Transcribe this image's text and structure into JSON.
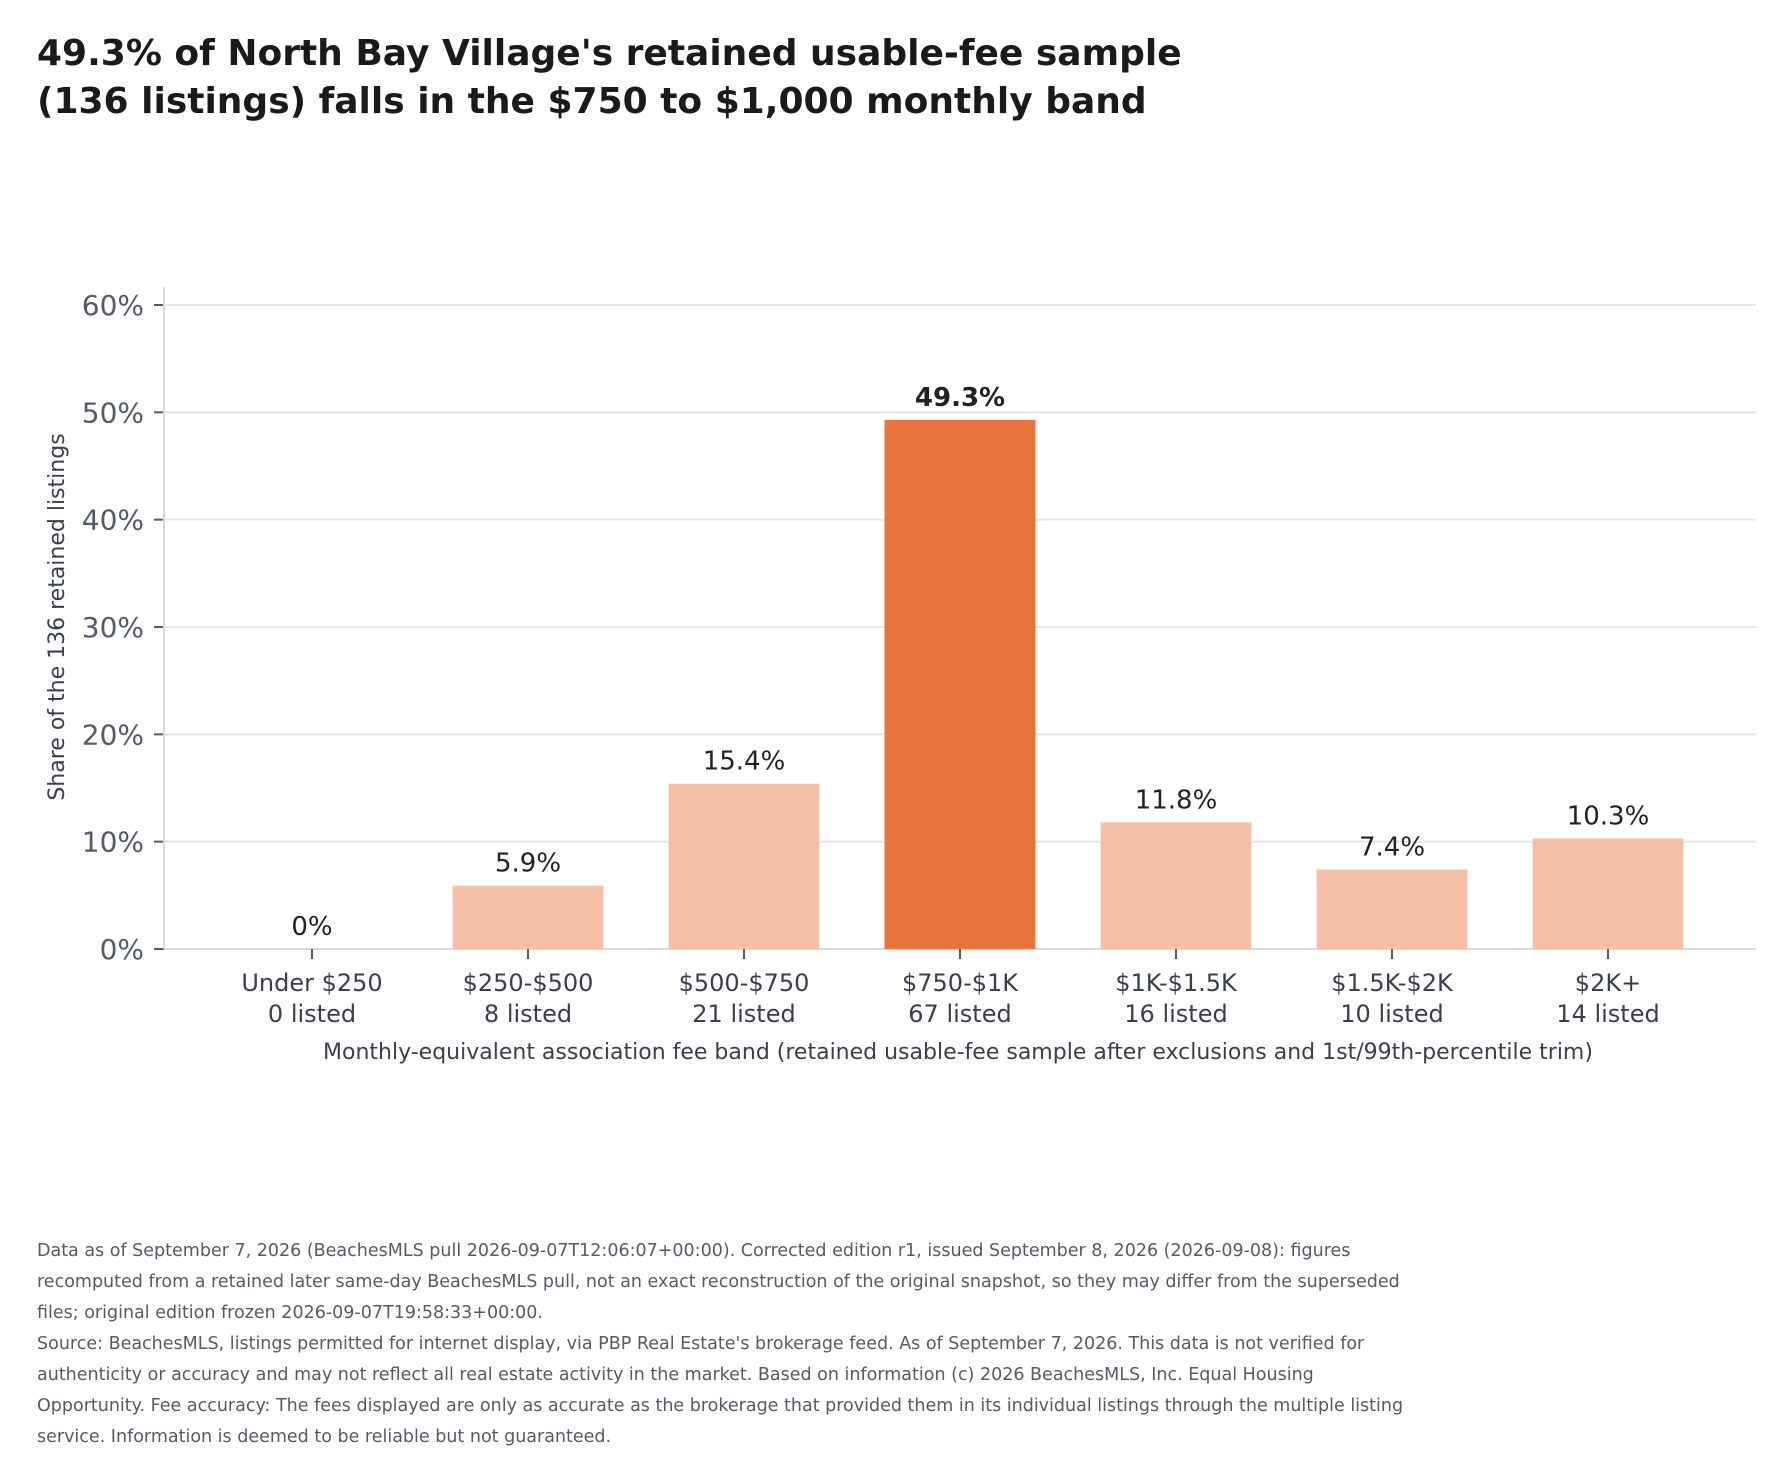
{
  "title": "49.3% of North Bay Village's retained usable-fee sample (136 listings) falls in the $750 to $1,000 monthly band",
  "chart_data": {
    "type": "bar",
    "categories": [
      "Under $250",
      "$250-$500",
      "$500-$750",
      "$750-$1K",
      "$1K-$1.5K",
      "$1.5K-$2K",
      "$2K+"
    ],
    "counts": [
      "0 listed",
      "8 listed",
      "21 listed",
      "67 listed",
      "16 listed",
      "10 listed",
      "14 listed"
    ],
    "values": [
      0,
      5.9,
      15.4,
      49.3,
      11.8,
      7.4,
      10.3
    ],
    "data_labels": [
      "0%",
      "5.9%",
      "15.4%",
      "49.3%",
      "11.8%",
      "7.4%",
      "10.3%"
    ],
    "highlight_index": 3,
    "ylim": [
      0,
      60
    ],
    "yticks": [
      0,
      10,
      20,
      30,
      40,
      50,
      60
    ],
    "ytick_labels": [
      "0%",
      "10%",
      "20%",
      "30%",
      "40%",
      "50%",
      "60%"
    ],
    "xlabel": "Monthly-equivalent association fee band (retained usable-fee sample after exclusions and 1st/99th-percentile trim)",
    "ylabel": "Share of the 136 retained listings",
    "grid": true,
    "colors": {
      "highlight": "#e8743b",
      "bar": "#f5bfa6",
      "grid": "#e3e4ec",
      "axis": "#d6d7e2"
    }
  },
  "notes": {
    "data_note": "Data as of September 7, 2026 (BeachesMLS pull 2026-09-07T12:06:07+00:00). Corrected edition r1, issued September 8, 2026 (2026-09-08): figures recomputed from a retained later same-day BeachesMLS pull, not an exact reconstruction of the original snapshot, so they may differ from the superseded files; original edition frozen 2026-09-07T19:58:33+00:00.",
    "source": "Source: BeachesMLS, listings permitted for internet display, via PBP Real Estate's brokerage feed. As of September 7, 2026. This data is not verified for authenticity or accuracy and may not reflect all real estate activity in the market. Based on information (c) 2026 BeachesMLS, Inc. Equal Housing Opportunity. Fee accuracy: The fees displayed are only as accurate as the brokerage that provided them in its individual listings through the multiple listing service. Information is deemed to be reliable but not guaranteed."
  }
}
